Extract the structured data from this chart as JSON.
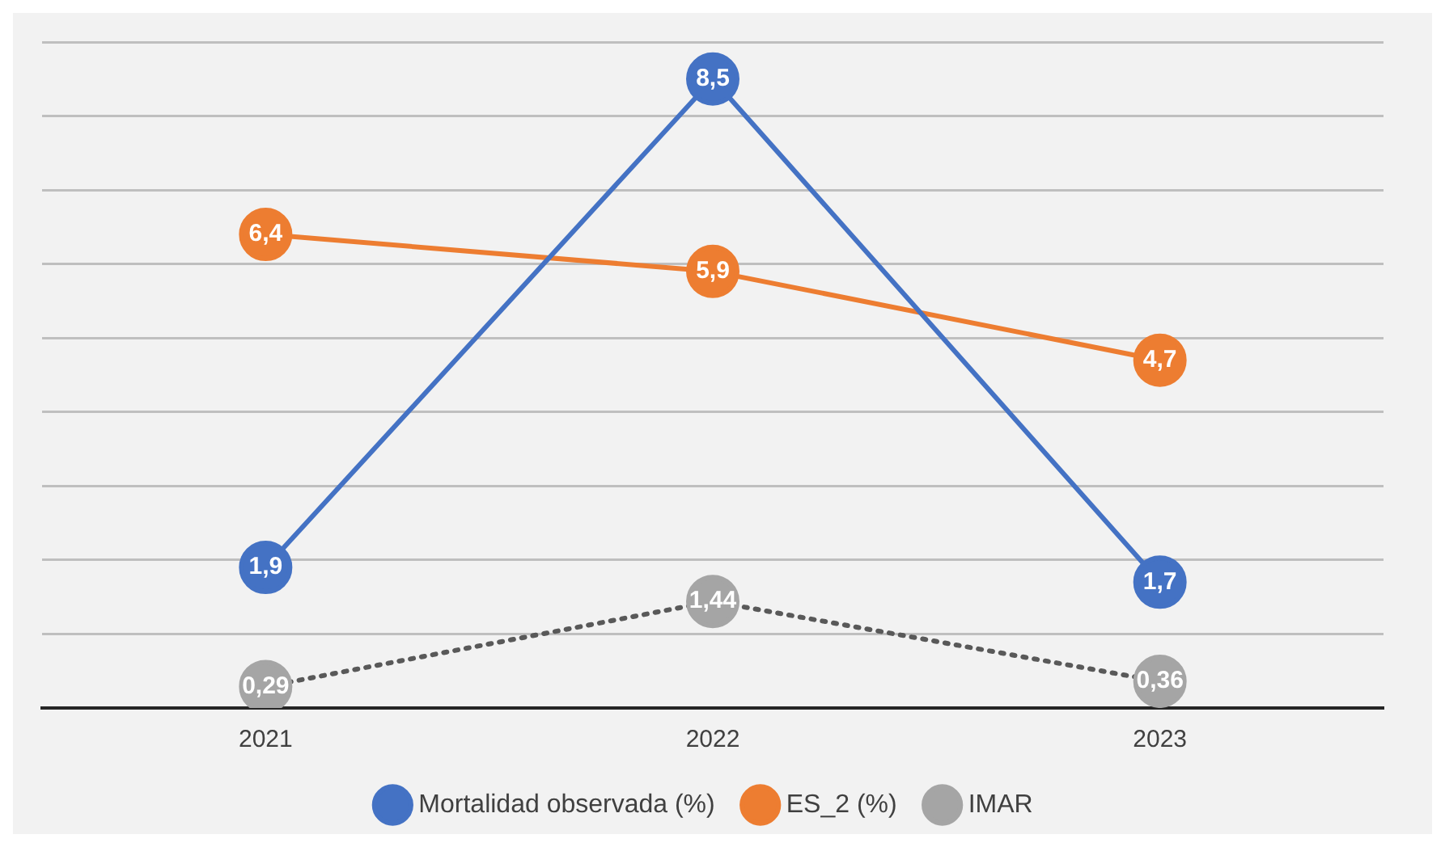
{
  "chart_data": {
    "type": "line",
    "categories": [
      "2021",
      "2022",
      "2023"
    ],
    "series": [
      {
        "name": "Mortalidad observada (%)",
        "color": "#4472c4",
        "values": [
          1.9,
          8.5,
          1.7
        ],
        "value_labels": [
          "1,9",
          "8,5",
          "1,7"
        ]
      },
      {
        "name": "ES_2 (%)",
        "color": "#ed7d31",
        "values": [
          6.4,
          5.9,
          4.7
        ],
        "value_labels": [
          "6,4",
          "5,9",
          "4,7"
        ]
      },
      {
        "name": "IMAR",
        "color": "#a5a5a5",
        "values": [
          0.29,
          1.44,
          0.36
        ],
        "value_labels": [
          "0,29",
          "1,44",
          "0,36"
        ],
        "line_style": "dotted"
      }
    ],
    "ylim": [
      0,
      9
    ],
    "yticks": [
      {
        "value": 0,
        "label": null
      },
      {
        "value": 1,
        "label": null
      },
      {
        "value": 2,
        "label": null
      },
      {
        "value": 3,
        "label": null
      },
      {
        "value": 4,
        "label": null
      },
      {
        "value": 5,
        "label": null
      },
      {
        "value": 6,
        "label": null
      },
      {
        "value": 7,
        "label": null
      },
      {
        "value": 8,
        "label": null
      },
      {
        "value": 9,
        "label": null
      }
    ],
    "grid": "y",
    "tick_labels": "x",
    "legend": "bottom",
    "marker": "circle"
  }
}
